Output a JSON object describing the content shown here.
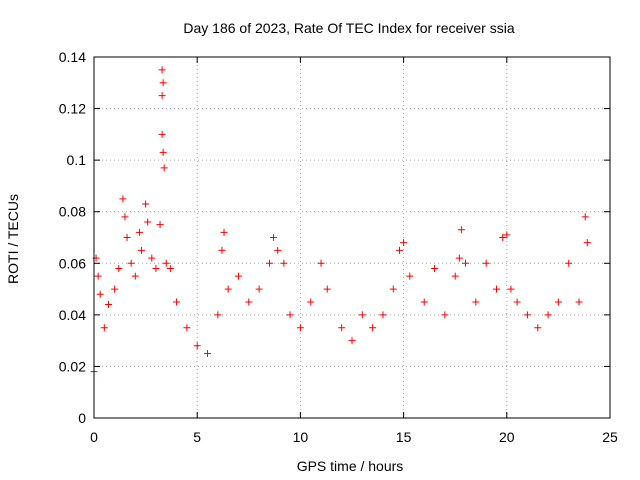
{
  "chart_data": {
    "type": "scatter",
    "title": "Day 186 of 2023, Rate Of TEC Index for receiver ssia",
    "xlabel": "GPS time / hours",
    "ylabel": "ROTI / TECUs",
    "xlim": [
      0,
      25
    ],
    "ylim": [
      0,
      0.14
    ],
    "xticks": [
      0,
      5,
      10,
      15,
      20,
      25
    ],
    "xtick_labels": [
      "0",
      "5",
      "10",
      "15",
      "20",
      "25"
    ],
    "yticks": [
      0,
      0.02,
      0.04,
      0.06,
      0.08,
      0.1,
      0.12,
      0.14
    ],
    "ytick_labels": [
      "0",
      "0.02",
      "0.04",
      "0.06",
      "0.08",
      "0.1",
      "0.12",
      "0.14"
    ],
    "grid": true,
    "marker": "+",
    "marker_color": "#ff0000",
    "series": [
      {
        "name": "ROTI",
        "points": [
          [
            0.0,
            0.018
          ],
          [
            0.1,
            0.062
          ],
          [
            0.2,
            0.055
          ],
          [
            0.3,
            0.048
          ],
          [
            0.5,
            0.035
          ],
          [
            0.7,
            0.044
          ],
          [
            1.0,
            0.05
          ],
          [
            1.2,
            0.058
          ],
          [
            1.4,
            0.085
          ],
          [
            1.5,
            0.078
          ],
          [
            1.6,
            0.07
          ],
          [
            1.8,
            0.06
          ],
          [
            2.0,
            0.055
          ],
          [
            2.2,
            0.072
          ],
          [
            2.3,
            0.065
          ],
          [
            2.5,
            0.083
          ],
          [
            2.6,
            0.076
          ],
          [
            2.8,
            0.062
          ],
          [
            3.0,
            0.058
          ],
          [
            3.2,
            0.075
          ],
          [
            3.3,
            0.135
          ],
          [
            3.35,
            0.13
          ],
          [
            3.3,
            0.125
          ],
          [
            3.3,
            0.11
          ],
          [
            3.35,
            0.103
          ],
          [
            3.4,
            0.097
          ],
          [
            3.5,
            0.06
          ],
          [
            3.7,
            0.058
          ],
          [
            4.0,
            0.045
          ],
          [
            4.5,
            0.035
          ],
          [
            5.0,
            0.028
          ],
          [
            5.5,
            0.025
          ],
          [
            6.0,
            0.04
          ],
          [
            6.2,
            0.065
          ],
          [
            6.3,
            0.072
          ],
          [
            6.5,
            0.05
          ],
          [
            7.0,
            0.055
          ],
          [
            7.5,
            0.045
          ],
          [
            8.0,
            0.05
          ],
          [
            8.5,
            0.06
          ],
          [
            8.7,
            0.07
          ],
          [
            8.9,
            0.065
          ],
          [
            9.2,
            0.06
          ],
          [
            9.5,
            0.04
          ],
          [
            10.0,
            0.035
          ],
          [
            10.5,
            0.045
          ],
          [
            11.0,
            0.06
          ],
          [
            11.3,
            0.05
          ],
          [
            12.0,
            0.035
          ],
          [
            12.5,
            0.03
          ],
          [
            13.0,
            0.04
          ],
          [
            13.5,
            0.035
          ],
          [
            14.0,
            0.04
          ],
          [
            14.5,
            0.05
          ],
          [
            14.8,
            0.065
          ],
          [
            15.0,
            0.068
          ],
          [
            15.3,
            0.055
          ],
          [
            16.0,
            0.045
          ],
          [
            16.5,
            0.058
          ],
          [
            17.0,
            0.04
          ],
          [
            17.5,
            0.055
          ],
          [
            17.7,
            0.062
          ],
          [
            17.8,
            0.073
          ],
          [
            18.0,
            0.06
          ],
          [
            18.5,
            0.045
          ],
          [
            19.0,
            0.06
          ],
          [
            19.5,
            0.05
          ],
          [
            19.8,
            0.07
          ],
          [
            20.0,
            0.071
          ],
          [
            20.2,
            0.05
          ],
          [
            20.5,
            0.045
          ],
          [
            21.0,
            0.04
          ],
          [
            21.5,
            0.035
          ],
          [
            22.0,
            0.04
          ],
          [
            22.5,
            0.045
          ],
          [
            23.0,
            0.06
          ],
          [
            23.5,
            0.045
          ],
          [
            23.8,
            0.078
          ],
          [
            23.9,
            0.068
          ]
        ]
      }
    ]
  }
}
